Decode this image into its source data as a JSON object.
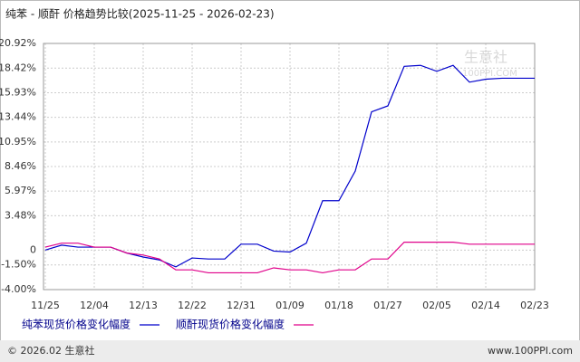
{
  "chart_data": {
    "type": "line",
    "title": "纯苯 - 顺酐 价格趋势比较(2025-11-25 - 2026-02-23)",
    "categories": [
      "11/25",
      null,
      null,
      "12/04",
      null,
      null,
      "12/13",
      null,
      null,
      "12/22",
      null,
      null,
      "12/31",
      null,
      null,
      "01/09",
      null,
      null,
      "01/18",
      null,
      null,
      "01/27",
      null,
      null,
      "02/05",
      null,
      null,
      "02/14",
      null,
      null,
      "02/23"
    ],
    "series": [
      {
        "name": "纯苯现货价格变化幅度",
        "color": "#0000cc",
        "values": [
          0,
          0.5,
          0.3,
          0.3,
          0.3,
          -0.3,
          -0.7,
          -1.0,
          -1.7,
          -0.8,
          -0.9,
          -0.9,
          0.6,
          0.6,
          -0.1,
          -0.2,
          0.7,
          5.0,
          5.0,
          8.0,
          14.0,
          14.6,
          18.6,
          18.7,
          18.1,
          18.7,
          17.0,
          17.3,
          17.4,
          17.4,
          17.4
        ]
      },
      {
        "name": "顺酐现货价格变化幅度",
        "color": "#e0008a",
        "values": [
          0.3,
          0.7,
          0.7,
          0.3,
          0.3,
          -0.3,
          -0.5,
          -0.9,
          -2.0,
          -2.0,
          -2.3,
          -2.3,
          -2.3,
          -2.3,
          -1.8,
          -2.0,
          -2.0,
          -2.3,
          -2.0,
          -2.0,
          -0.9,
          -0.9,
          0.8,
          0.8,
          0.8,
          0.8,
          0.6,
          0.6,
          0.6,
          0.6,
          0.6
        ]
      }
    ],
    "ylim": [
      -4.0,
      20.92
    ],
    "yticks": [
      {
        "value": 20.92,
        "label": "20.92%"
      },
      {
        "value": 18.42,
        "label": "18.42%"
      },
      {
        "value": 15.93,
        "label": "15.93%"
      },
      {
        "value": 13.44,
        "label": "13.44%"
      },
      {
        "value": 10.95,
        "label": "10.95%"
      },
      {
        "value": 8.46,
        "label": "8.46%"
      },
      {
        "value": 5.97,
        "label": "5.97%"
      },
      {
        "value": 3.48,
        "label": "3.48%"
      },
      0,
      {
        "value": -1.5,
        "label": "-1.50%"
      },
      {
        "value": -4.0,
        "label": "-4.00%"
      }
    ],
    "grid": true,
    "legend": "bottom"
  },
  "watermark": {
    "name": "生意社",
    "site": "100PPI.COM"
  },
  "footer": {
    "copyright": "© 2026.02 生意社",
    "site": "www.100PPI.com"
  }
}
